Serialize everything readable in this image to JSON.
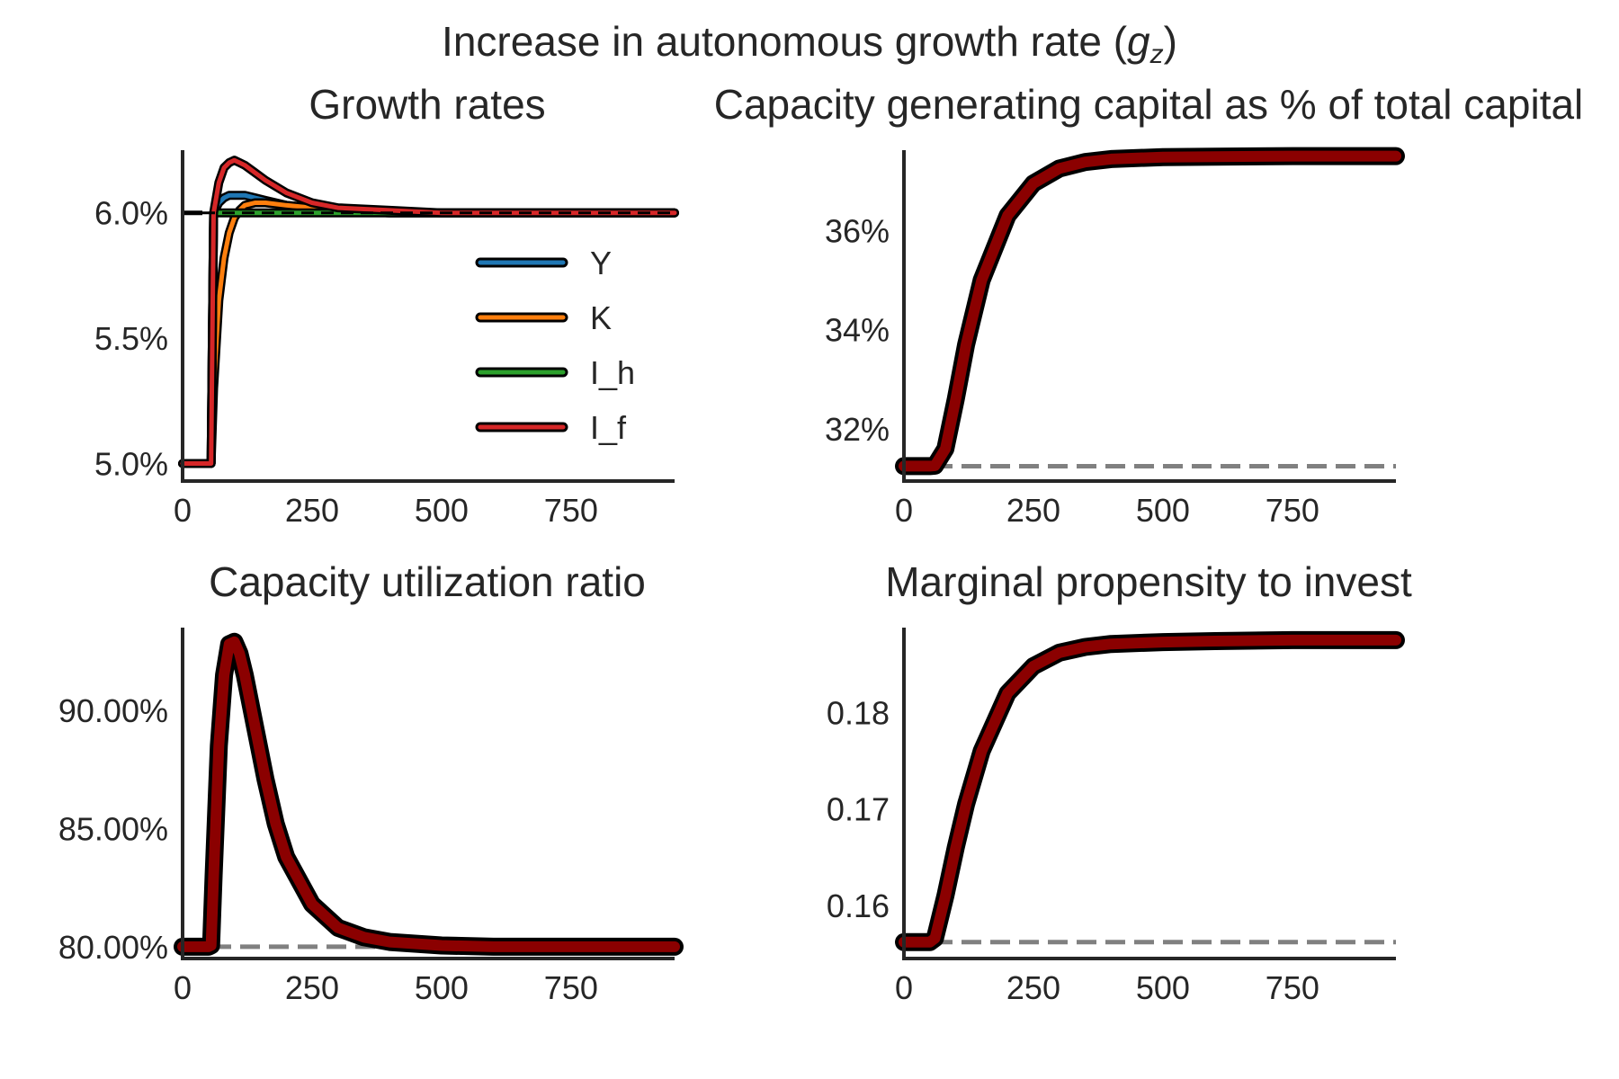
{
  "figure": {
    "suptitle_main": "Increase in autonomous growth rate (",
    "suptitle_symbol": "g",
    "suptitle_sub": "z",
    "suptitle_close": ")"
  },
  "colors": {
    "Y": "#1f77b4",
    "K": "#ff7f0e",
    "I_h": "#2ca02c",
    "I_f": "#d62728",
    "main": "#8b0000",
    "outline": "#000000",
    "reference": "#808080",
    "axis": "#262626"
  },
  "chart_data": [
    {
      "type": "line",
      "title": "Growth rates",
      "xlim": [
        0,
        950
      ],
      "ylim": [
        0.0493,
        0.0625
      ],
      "xticks": [
        0,
        250,
        500,
        750
      ],
      "xtick_labels": [
        "0",
        "250",
        "500",
        "750"
      ],
      "yticks": [
        0.05,
        0.055,
        0.06
      ],
      "ytick_labels": [
        "5.0%",
        "5.5%",
        "6.0%"
      ],
      "reference_line": {
        "y": 0.06,
        "style": "dashed",
        "color": "#000000"
      },
      "legend": {
        "placement": "center-right",
        "entries": [
          "Y",
          "K",
          "I_h",
          "I_f"
        ]
      },
      "series": [
        {
          "name": "Y",
          "x": [
            0,
            50,
            55,
            60,
            70,
            80,
            90,
            100,
            110,
            120,
            140,
            160,
            200,
            250,
            300,
            400,
            500,
            600,
            750,
            950
          ],
          "y": [
            0.05,
            0.05,
            0.05,
            0.06,
            0.0604,
            0.0606,
            0.0607,
            0.0607,
            0.0607,
            0.0607,
            0.0606,
            0.0605,
            0.0603,
            0.0602,
            0.0601,
            0.06,
            0.06,
            0.06,
            0.06,
            0.06
          ]
        },
        {
          "name": "K",
          "x": [
            0,
            50,
            55,
            60,
            70,
            80,
            90,
            100,
            110,
            120,
            140,
            160,
            200,
            250,
            300,
            400,
            500,
            600,
            750,
            950
          ],
          "y": [
            0.05,
            0.05,
            0.05,
            0.053,
            0.0565,
            0.0582,
            0.0592,
            0.0598,
            0.0601,
            0.0603,
            0.0604,
            0.0604,
            0.0603,
            0.0602,
            0.0601,
            0.06,
            0.06,
            0.06,
            0.06,
            0.06
          ]
        },
        {
          "name": "I_h",
          "x": [
            0,
            50,
            55,
            60,
            100,
            200,
            300,
            400,
            500,
            600,
            750,
            950
          ],
          "y": [
            0.05,
            0.05,
            0.05,
            0.06,
            0.06,
            0.06,
            0.06,
            0.06,
            0.06,
            0.06,
            0.06,
            0.06
          ]
        },
        {
          "name": "I_f",
          "x": [
            0,
            50,
            55,
            60,
            70,
            80,
            90,
            100,
            110,
            120,
            140,
            160,
            200,
            250,
            300,
            400,
            500,
            600,
            750,
            950
          ],
          "y": [
            0.05,
            0.05,
            0.05,
            0.06,
            0.0612,
            0.0618,
            0.062,
            0.0621,
            0.062,
            0.0619,
            0.0616,
            0.0613,
            0.0608,
            0.0604,
            0.0602,
            0.0601,
            0.06,
            0.06,
            0.06,
            0.06
          ]
        }
      ]
    },
    {
      "type": "line",
      "title": "Capacity generating capital as % of total capital",
      "xlim": [
        0,
        950
      ],
      "ylim": [
        0.3095,
        0.3762
      ],
      "xticks": [
        0,
        250,
        500,
        750
      ],
      "xtick_labels": [
        "0",
        "250",
        "500",
        "750"
      ],
      "yticks": [
        0.32,
        0.34,
        0.36
      ],
      "ytick_labels": [
        "32%",
        "34%",
        "36%"
      ],
      "reference_line": {
        "y": 0.3125,
        "style": "dashed",
        "color": "#808080"
      },
      "series": [
        {
          "x": [
            0,
            50,
            60,
            80,
            100,
            120,
            150,
            200,
            250,
            300,
            350,
            400,
            500,
            600,
            750,
            950
          ],
          "y": [
            0.3125,
            0.3125,
            0.3126,
            0.316,
            0.326,
            0.337,
            0.35,
            0.363,
            0.3695,
            0.3725,
            0.3738,
            0.3744,
            0.3748,
            0.3749,
            0.375,
            0.375
          ]
        }
      ]
    },
    {
      "type": "line",
      "title": "Capacity utilization ratio",
      "xlim": [
        0,
        950
      ],
      "ylim": [
        0.795,
        0.935
      ],
      "xticks": [
        0,
        250,
        500,
        750
      ],
      "xtick_labels": [
        "0",
        "250",
        "500",
        "750"
      ],
      "yticks": [
        0.8,
        0.85,
        0.9
      ],
      "ytick_labels": [
        "80.00%",
        "85.00%",
        "90.00%"
      ],
      "reference_line": {
        "y": 0.8,
        "style": "dashed",
        "color": "#808080"
      },
      "series": [
        {
          "x": [
            0,
            50,
            55,
            60,
            70,
            80,
            90,
            100,
            110,
            120,
            140,
            160,
            180,
            200,
            250,
            300,
            350,
            400,
            500,
            600,
            750,
            950
          ],
          "y": [
            0.8,
            0.8,
            0.8005,
            0.83,
            0.885,
            0.915,
            0.928,
            0.929,
            0.924,
            0.915,
            0.893,
            0.871,
            0.852,
            0.838,
            0.818,
            0.808,
            0.804,
            0.802,
            0.8005,
            0.8,
            0.8,
            0.8
          ]
        }
      ]
    },
    {
      "type": "line",
      "title": "Marginal propensity to invest",
      "xlim": [
        0,
        950
      ],
      "ylim": [
        0.1545,
        0.1888
      ],
      "xticks": [
        0,
        250,
        500,
        750
      ],
      "xtick_labels": [
        "0",
        "250",
        "500",
        "750"
      ],
      "yticks": [
        0.16,
        0.17,
        0.18
      ],
      "ytick_labels": [
        "0.16",
        "0.17",
        "0.18"
      ],
      "reference_line": {
        "y": 0.1562,
        "style": "dashed",
        "color": "#808080"
      },
      "series": [
        {
          "x": [
            0,
            50,
            60,
            80,
            100,
            120,
            150,
            200,
            250,
            300,
            350,
            400,
            500,
            600,
            750,
            950
          ],
          "y": [
            0.1562,
            0.1562,
            0.1566,
            0.161,
            0.166,
            0.1705,
            0.176,
            0.182,
            0.1848,
            0.1862,
            0.1868,
            0.1871,
            0.1873,
            0.1874,
            0.1875,
            0.1875
          ]
        }
      ]
    }
  ]
}
